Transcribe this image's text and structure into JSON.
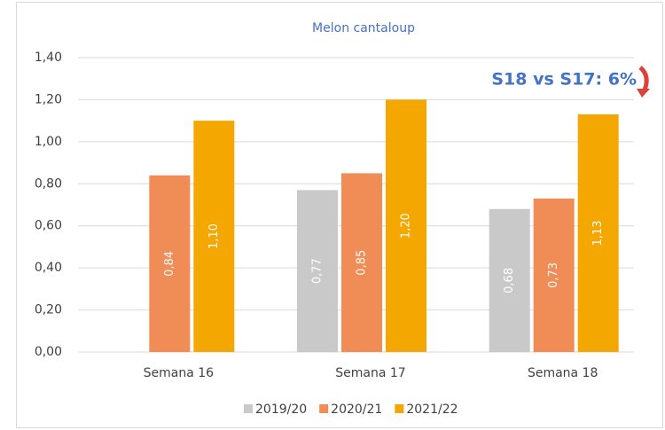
{
  "chart_data": {
    "type": "bar",
    "title": "Melon cantaloup",
    "categories": [
      "Semana 16",
      "Semana 17",
      "Semana 18"
    ],
    "series": [
      {
        "name": "2019/20",
        "color": "#c9c9c9",
        "values": [
          null,
          0.77,
          0.68
        ],
        "value_labels": [
          null,
          "0,77",
          "0,68"
        ]
      },
      {
        "name": "2020/21",
        "color": "#f08c55",
        "values": [
          0.84,
          0.85,
          0.73
        ],
        "value_labels": [
          "0,84",
          "0,85",
          "0,73"
        ]
      },
      {
        "name": "2021/22",
        "color": "#f4a700",
        "values": [
          1.1,
          1.2,
          1.13
        ],
        "value_labels": [
          "1,10",
          "1,20",
          "1,13"
        ]
      }
    ],
    "ylim": [
      0,
      1.4
    ],
    "yticks": [
      {
        "value": 0,
        "label": "0,00"
      },
      {
        "value": 0.2,
        "label": "0,20"
      },
      {
        "value": 0.4,
        "label": "0,40"
      },
      {
        "value": 0.6,
        "label": "0,60"
      },
      {
        "value": 0.8,
        "label": "0,80"
      },
      {
        "value": 1.0,
        "label": "1,00"
      },
      {
        "value": 1.2,
        "label": "1,20"
      },
      {
        "value": 1.4,
        "label": "1,40"
      }
    ],
    "grid": true,
    "legend": "bottom",
    "annotation": "S18 vs S17: 6%"
  }
}
